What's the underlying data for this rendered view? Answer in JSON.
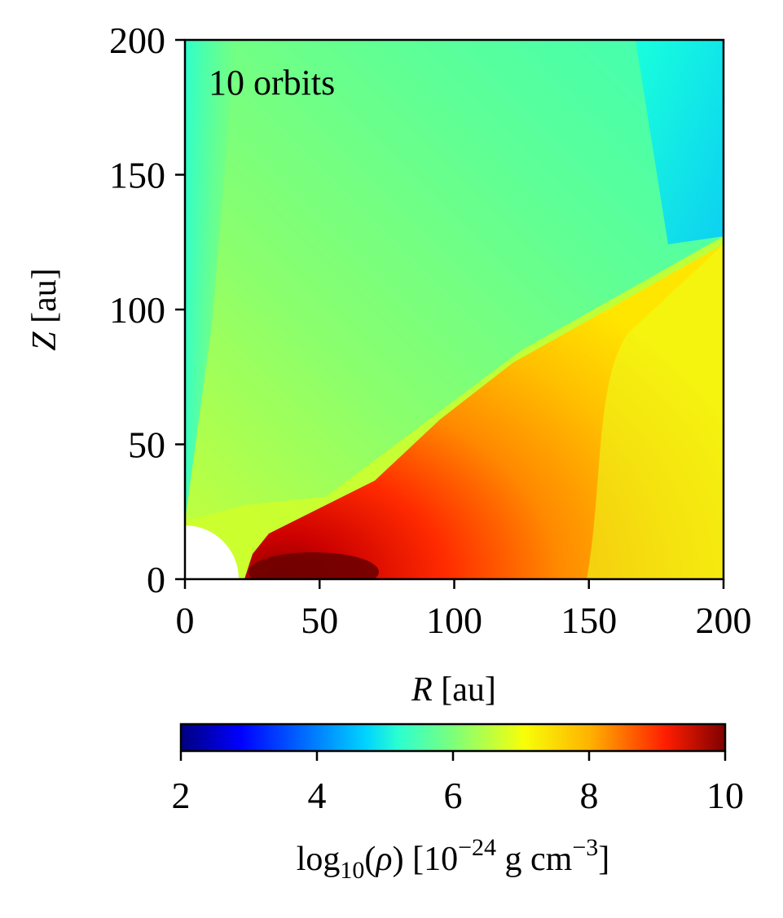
{
  "chart_data": {
    "type": "heatmap",
    "annotation": "10 orbits",
    "xlabel": {
      "symbol": "R",
      "unit": " [au]"
    },
    "ylabel": {
      "symbol": "Z",
      "unit": " [au]"
    },
    "xlim": [
      0,
      200
    ],
    "ylim": [
      0,
      200
    ],
    "xticks": [
      0,
      50,
      100,
      150,
      200
    ],
    "yticks": [
      0,
      50,
      100,
      150,
      200
    ],
    "x_tick_labels": [
      "0",
      "50",
      "100",
      "150",
      "200"
    ],
    "y_tick_labels": [
      "0",
      "50",
      "100",
      "150",
      "200"
    ],
    "inner_boundary_radius_au": 20,
    "colorbar": {
      "colormap": "jet",
      "range": [
        2,
        10
      ],
      "ticks": [
        2,
        4,
        6,
        8,
        10
      ],
      "tick_labels": [
        "2",
        "4",
        "6",
        "8",
        "10"
      ],
      "label": {
        "pre": "log",
        "sub": "10",
        "paren_open": "(",
        "rho": "ρ",
        "paren_close": ")",
        "bracket": " [10",
        "exp1": "−24",
        "units": " g cm",
        "exp2": "−3",
        "close": "]"
      }
    },
    "density_regions": [
      {
        "region": "polar outflow near axis",
        "log10_rho": 5.3
      },
      {
        "region": "upper envelope",
        "log10_rho": 5.9
      },
      {
        "region": "upper-right corner",
        "log10_rho": 4.8
      },
      {
        "region": "disk surface",
        "log10_rho": 7.3
      },
      {
        "region": "disk interior",
        "log10_rho": 8.5
      },
      {
        "region": "disk midplane peak",
        "log10_rho": 10.0
      }
    ]
  }
}
